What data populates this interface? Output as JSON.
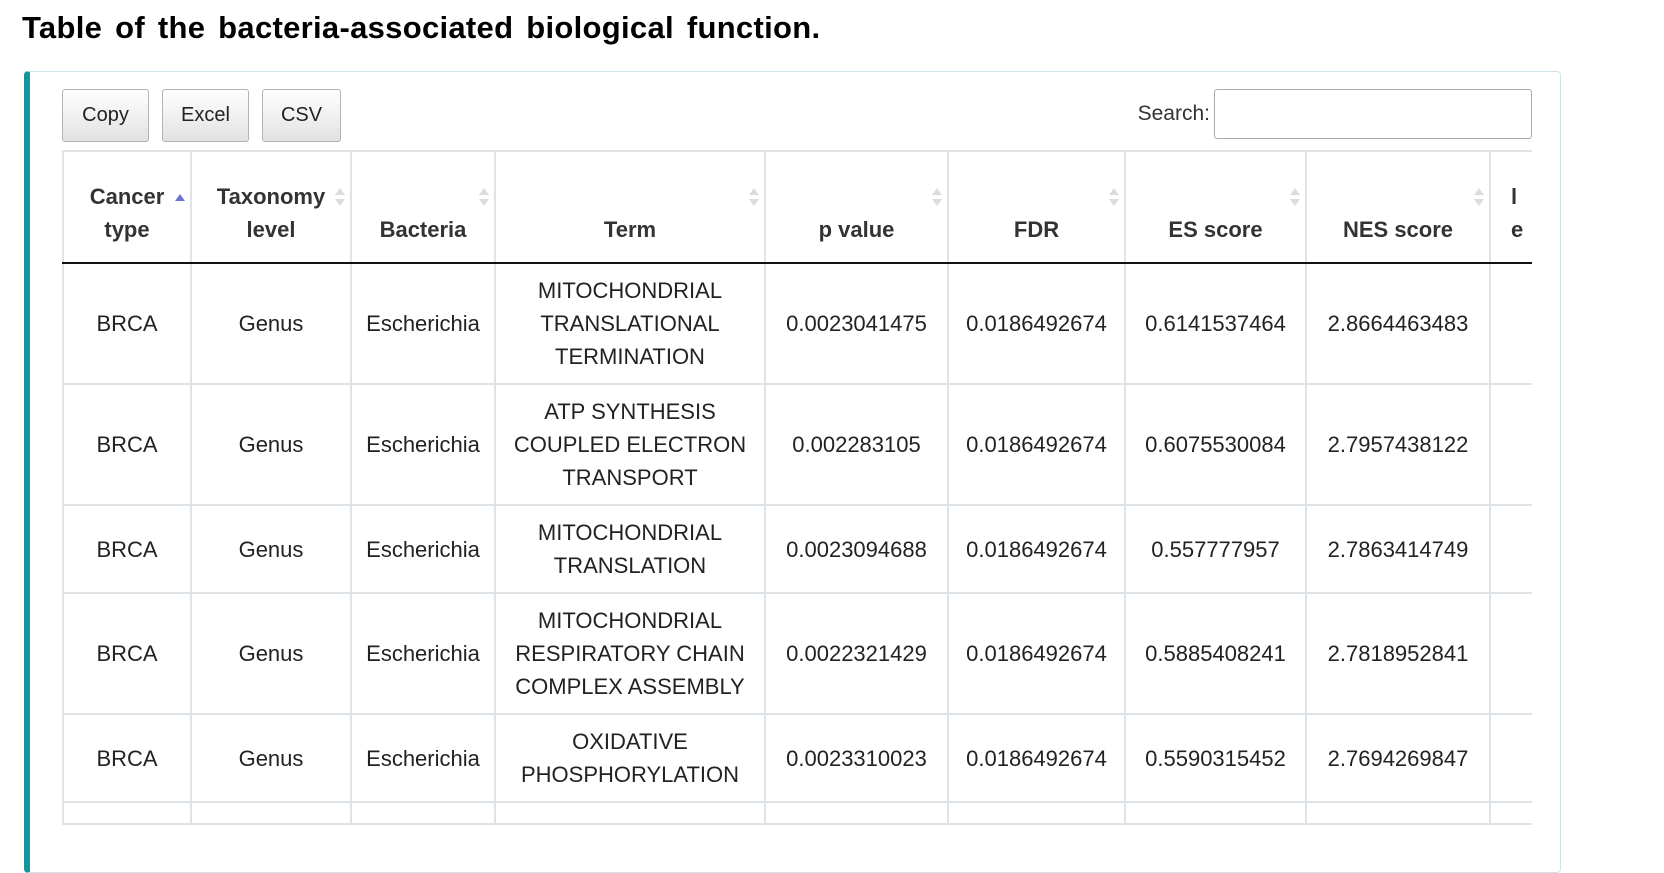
{
  "page": {
    "title": "Table of the bacteria-associated biological function."
  },
  "toolbar": {
    "copy_label": "Copy",
    "excel_label": "Excel",
    "csv_label": "CSV"
  },
  "search": {
    "label": "Search:",
    "value": "",
    "placeholder": ""
  },
  "table": {
    "sorted_column": "Cancer type",
    "sort_direction": "ascending",
    "columns": [
      {
        "label": "Cancer type",
        "line1": "Cancer",
        "line2": "type"
      },
      {
        "label": "Taxonomy level",
        "line1": "Taxonomy",
        "line2": "level"
      },
      {
        "label": "Bacteria",
        "line1": "",
        "line2": "Bacteria"
      },
      {
        "label": "Term",
        "line1": "",
        "line2": "Term"
      },
      {
        "label": "p value",
        "line1": "",
        "line2": "p value"
      },
      {
        "label": "FDR",
        "line1": "",
        "line2": "FDR"
      },
      {
        "label": "ES score",
        "line1": "",
        "line2": "ES score"
      },
      {
        "label": "NES score",
        "line1": "",
        "line2": "NES score"
      },
      {
        "label": "",
        "line1": "l",
        "line2": "e"
      }
    ],
    "rows": [
      {
        "cancer_type": "BRCA",
        "taxonomy_level": "Genus",
        "bacteria": "Escherichia",
        "term": [
          "MITOCHONDRIAL",
          "TRANSLATIONAL",
          "TERMINATION"
        ],
        "p_value": "0.0023041475",
        "fdr": "0.0186492674",
        "es_score": "0.6141537464",
        "nes_score": "2.8664463483"
      },
      {
        "cancer_type": "BRCA",
        "taxonomy_level": "Genus",
        "bacteria": "Escherichia",
        "term": [
          "ATP SYNTHESIS",
          "COUPLED ELECTRON",
          "TRANSPORT"
        ],
        "p_value": "0.002283105",
        "fdr": "0.0186492674",
        "es_score": "0.6075530084",
        "nes_score": "2.7957438122"
      },
      {
        "cancer_type": "BRCA",
        "taxonomy_level": "Genus",
        "bacteria": "Escherichia",
        "term": [
          "MITOCHONDRIAL",
          "TRANSLATION"
        ],
        "p_value": "0.0023094688",
        "fdr": "0.0186492674",
        "es_score": "0.557777957",
        "nes_score": "2.7863414749"
      },
      {
        "cancer_type": "BRCA",
        "taxonomy_level": "Genus",
        "bacteria": "Escherichia",
        "term": [
          "MITOCHONDRIAL",
          "RESPIRATORY CHAIN",
          "COMPLEX ASSEMBLY"
        ],
        "p_value": "0.0022321429",
        "fdr": "0.0186492674",
        "es_score": "0.5885408241",
        "nes_score": "2.7818952841"
      },
      {
        "cancer_type": "BRCA",
        "taxonomy_level": "Genus",
        "bacteria": "Escherichia",
        "term": [
          "OXIDATIVE",
          "PHOSPHORYLATION"
        ],
        "p_value": "0.0023310023",
        "fdr": "0.0186492674",
        "es_score": "0.5590315452",
        "nes_score": "2.7694269847"
      },
      {
        "cancer_type": "",
        "taxonomy_level": "",
        "bacteria": "",
        "term": [
          ""
        ],
        "p_value": "",
        "fdr": "",
        "es_score": "",
        "nes_score": ""
      }
    ]
  },
  "colors": {
    "panel_accent": "#17949e",
    "sort_active": "#6f73d6",
    "sort_inactive": "#dcdcdc",
    "grid": "#dde3e6",
    "header_rule": "#111111"
  }
}
